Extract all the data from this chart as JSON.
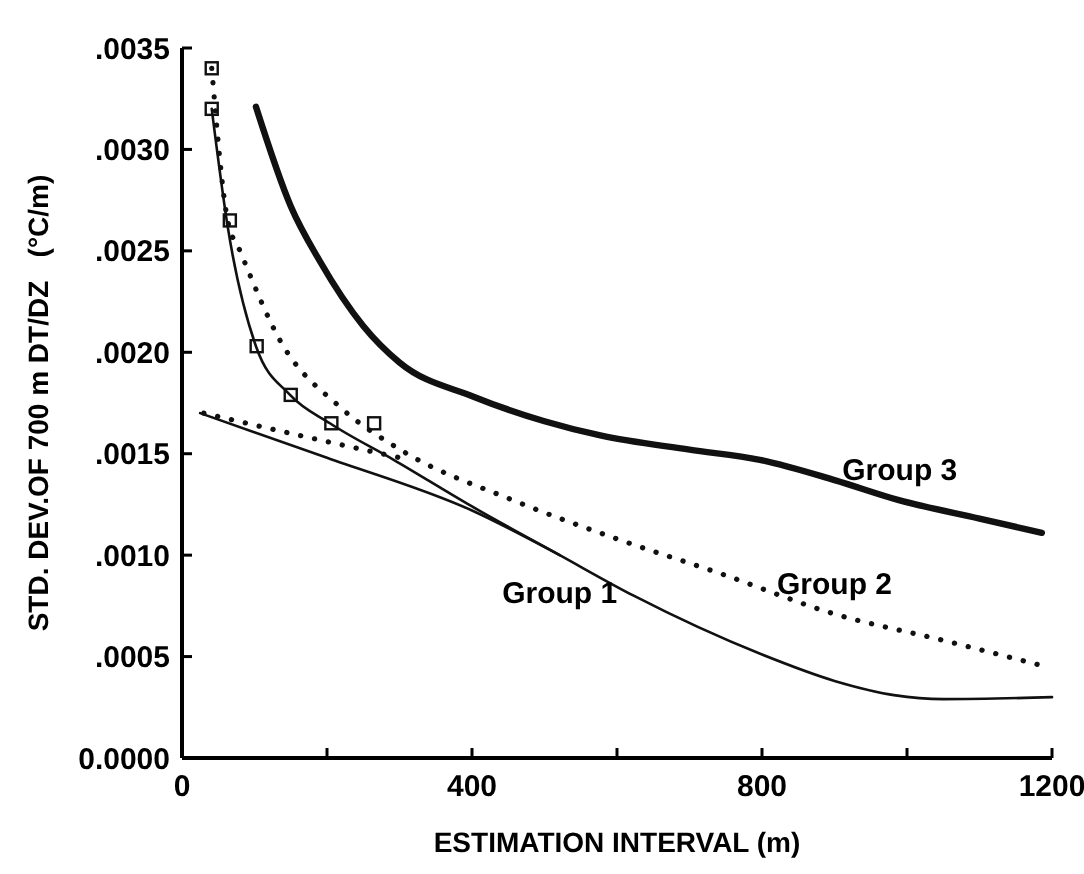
{
  "chart_data": {
    "type": "line",
    "xlabel": "ESTIMATION INTERVAL (m)",
    "ylabel": "STD. DEV.OF 700 m DT/DZ   (°C/m)",
    "xlim": [
      0,
      1200
    ],
    "ylim": [
      0,
      0.0035
    ],
    "xticks": [
      0,
      {
        "value": 200,
        "label": null
      },
      400,
      {
        "value": 600,
        "label": null
      },
      800,
      {
        "value": 1000,
        "label": null
      },
      1200
    ],
    "yticks": [
      {
        "value": 0,
        "label": "0.0000"
      },
      {
        "value": 0.0005,
        "label": ".0005"
      },
      {
        "value": 0.001,
        "label": ".0010"
      },
      {
        "value": 0.0015,
        "label": ".0015"
      },
      {
        "value": 0.002,
        "label": ".0020"
      },
      {
        "value": 0.0025,
        "label": ".0025"
      },
      {
        "value": 0.003,
        "label": ".0030"
      },
      {
        "value": 0.0035,
        "label": ".0035"
      }
    ],
    "series": [
      {
        "name": "Group 3",
        "color": "#111111",
        "line_style": "solid",
        "x": [
          102,
          150,
          190,
          250,
          300,
          403,
          500,
          577,
          700,
          797,
          900,
          990,
          1100,
          1186
        ],
        "values": [
          0.00321,
          0.00272,
          0.00245,
          0.00213,
          0.00195,
          0.00178,
          0.00166,
          0.00159,
          0.00152,
          0.00147,
          0.00137,
          0.00127,
          0.00118,
          0.00111
        ]
      },
      {
        "name": "Group 2",
        "color": "#111111",
        "line_style": "dotted",
        "x": [
          41,
          63,
          80,
          135,
          218,
          301,
          457,
          600,
          742,
          900,
          1050,
          1192
        ],
        "values": [
          0.0034,
          0.00265,
          0.0025,
          0.00206,
          0.00173,
          0.00152,
          0.00127,
          0.00108,
          0.00091,
          0.00071,
          0.00058,
          0.00045
        ]
      },
      {
        "color": "#111111",
        "line_style": "dotted",
        "x": [
          30,
          150,
          250,
          301
        ],
        "values": [
          0.0017,
          0.0016,
          0.00152,
          0.00148
        ]
      },
      {
        "name": "Group 1",
        "color": "#111111",
        "line_style": "solid",
        "x": [
          41,
          63,
          102,
          149,
          204,
          292,
          400,
          521,
          623,
          800,
          900,
          982,
          1050,
          1200
        ],
        "values": [
          0.0032,
          0.00262,
          0.00203,
          0.00179,
          0.00165,
          0.00147,
          0.00124,
          0.001,
          0.0008,
          0.00051,
          0.00038,
          0.00031,
          0.00029,
          0.0003
        ]
      },
      {
        "color": "#111111",
        "line_style": "solid",
        "x": [
          25,
          200,
          400,
          521
        ],
        "values": [
          0.0017,
          0.00148,
          0.00122,
          0.001
        ]
      },
      {
        "type": "scatter",
        "marker": "square",
        "color": "#111111",
        "x": [
          41,
          41,
          66,
          103,
          150,
          206,
          265
        ],
        "values": [
          0.0034,
          0.0032,
          0.00265,
          0.00203,
          0.00179,
          0.00165,
          0.00165
        ]
      }
    ],
    "grid": false
  }
}
